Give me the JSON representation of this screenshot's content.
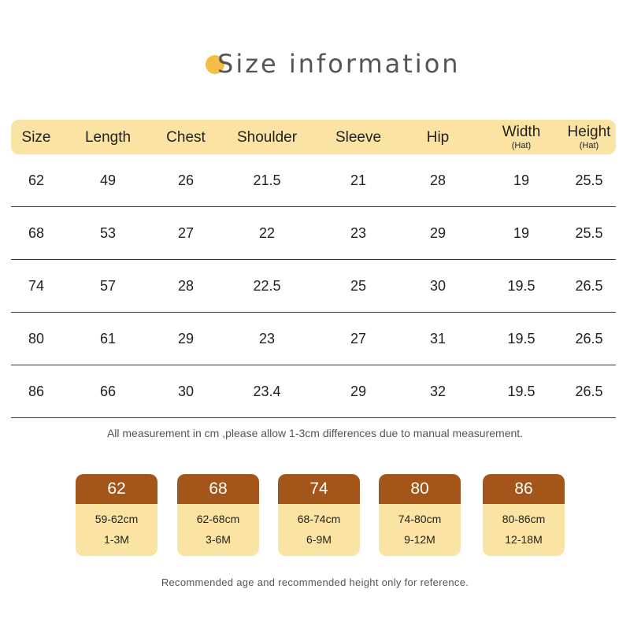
{
  "title": "Size information",
  "table": {
    "headers": [
      {
        "label": "Size",
        "sub": ""
      },
      {
        "label": "Length",
        "sub": ""
      },
      {
        "label": "Chest",
        "sub": ""
      },
      {
        "label": "Shoulder",
        "sub": ""
      },
      {
        "label": "Sleeve",
        "sub": ""
      },
      {
        "label": "Hip",
        "sub": ""
      },
      {
        "label": "Width",
        "sub": "(Hat)"
      },
      {
        "label": "Height",
        "sub": "(Hat)"
      }
    ],
    "rows": [
      [
        "62",
        "49",
        "26",
        "21.5",
        "21",
        "28",
        "19",
        "25.5"
      ],
      [
        "68",
        "53",
        "27",
        "22",
        "23",
        "29",
        "19",
        "25.5"
      ],
      [
        "74",
        "57",
        "28",
        "22.5",
        "25",
        "30",
        "19.5",
        "26.5"
      ],
      [
        "80",
        "61",
        "29",
        "23",
        "27",
        "31",
        "19.5",
        "26.5"
      ],
      [
        "86",
        "66",
        "30",
        "23.4",
        "29",
        "32",
        "19.5",
        "26.5"
      ]
    ]
  },
  "note": "All measurement in cm ,please allow 1-3cm differences due to manual measurement.",
  "cards": [
    {
      "size": "62",
      "height": "59-62cm",
      "age": "1-3M"
    },
    {
      "size": "68",
      "height": "62-68cm",
      "age": "3-6M"
    },
    {
      "size": "74",
      "height": "68-74cm",
      "age": "6-9M"
    },
    {
      "size": "80",
      "height": "74-80cm",
      "age": "9-12M"
    },
    {
      "size": "86",
      "height": "80-86cm",
      "age": "12-18M"
    }
  ],
  "footnote": "Recommended age and recommended height only for reference.",
  "colors": {
    "header_bg": "#fbe3a3",
    "card_top": "#a4561a",
    "card_bottom": "#fbe3a3",
    "title_dot": "#f6bd45"
  }
}
